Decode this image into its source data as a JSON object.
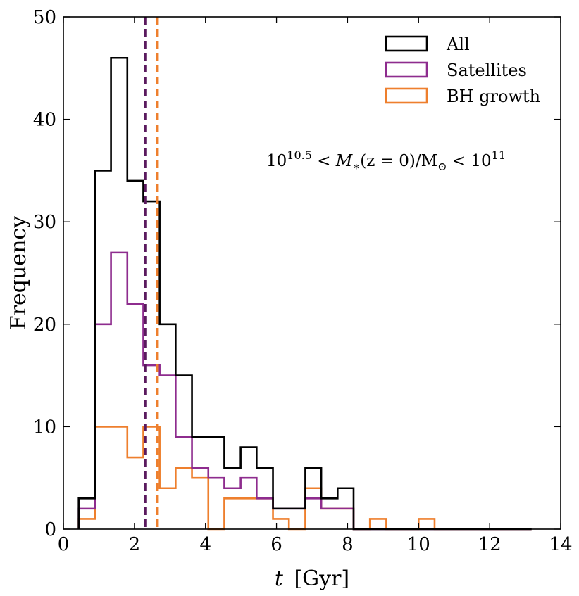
{
  "chart_data": {
    "type": "histogram",
    "title": "",
    "xlabel_symbol": "t",
    "xlabel_unit": "[Gyr]",
    "ylabel": "Frequency",
    "xlim": [
      0,
      14
    ],
    "ylim": [
      0,
      50
    ],
    "xticks": [
      0,
      2,
      4,
      6,
      8,
      10,
      12,
      14
    ],
    "yticks": [
      0,
      10,
      20,
      30,
      40,
      50
    ],
    "xtick_labels": [
      "0",
      "2",
      "4",
      "6",
      "8",
      "10",
      "12",
      "14"
    ],
    "ytick_labels": [
      "0",
      "10",
      "20",
      "30",
      "40",
      "50"
    ],
    "bin_edges": [
      0.43,
      0.89,
      1.34,
      1.8,
      2.25,
      2.71,
      3.16,
      3.62,
      4.08,
      4.53,
      4.99,
      5.44,
      5.9,
      6.35,
      6.81,
      7.26,
      7.72,
      8.17,
      8.63,
      9.09,
      9.54,
      10.0,
      10.45,
      10.91,
      11.36,
      11.82,
      12.27,
      12.73,
      13.18
    ],
    "series": [
      {
        "name": "All",
        "color": "#000000",
        "values": [
          3,
          35,
          46,
          34,
          32,
          20,
          15,
          9,
          9,
          6,
          8,
          6,
          2,
          2,
          6,
          3,
          4,
          0,
          0,
          0,
          0,
          0,
          0,
          0,
          0,
          0,
          0,
          0
        ]
      },
      {
        "name": "Satellites",
        "color": "#8e2c8e",
        "values": [
          2,
          20,
          27,
          22,
          16,
          15,
          9,
          6,
          5,
          4,
          5,
          3,
          2,
          2,
          3,
          2,
          2,
          0,
          0,
          0,
          0,
          0,
          0,
          0,
          0,
          0,
          0,
          0
        ]
      },
      {
        "name": "BH growth",
        "color": "#ee7f2d",
        "values": [
          1,
          10,
          10,
          7,
          10,
          4,
          6,
          5,
          0,
          3,
          3,
          3,
          1,
          0,
          4,
          2,
          2,
          0,
          1,
          0,
          0,
          1,
          0,
          0,
          0,
          0,
          0,
          0
        ]
      }
    ],
    "vlines": [
      {
        "name": "Satellites median",
        "x": 2.3,
        "color": "#5a1a5e"
      },
      {
        "name": "BH growth median",
        "x": 2.65,
        "color": "#ee7f2d"
      }
    ],
    "legend": {
      "position": "top-right",
      "entries": [
        "All",
        "Satellites",
        "BH growth"
      ]
    },
    "annotation": {
      "pre": "10",
      "exp1": "10.5",
      "mid": " < M",
      "sub1": "∗",
      "eq": "(z = 0)/M",
      "sub2": "⊙",
      "post": " < 10",
      "exp2": "11"
    }
  }
}
